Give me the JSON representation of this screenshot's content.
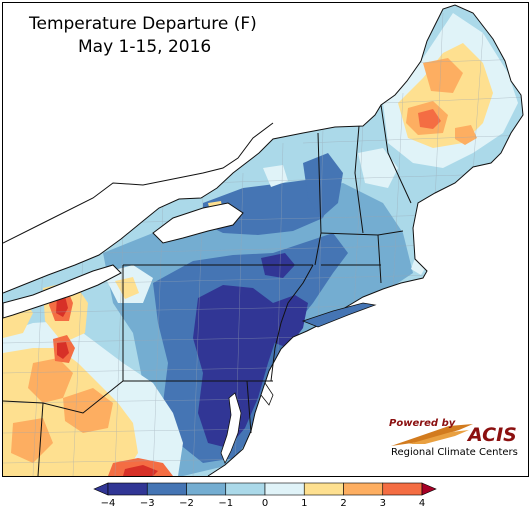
{
  "title": "Temperature Departure (F)",
  "subtitle": "May 1-15, 2016",
  "logo": {
    "powered_by": "Powered by",
    "brand": "ACIS",
    "org": "Regional Climate Centers"
  },
  "legend": {
    "ticks": [
      "−4",
      "−3",
      "−2",
      "−1",
      "0",
      "1",
      "2",
      "3",
      "4"
    ],
    "bins": [
      {
        "range": "-4 to -3",
        "color": "#313695"
      },
      {
        "range": "-3 to -2",
        "color": "#4575b4"
      },
      {
        "range": "-2 to -1",
        "color": "#74add1"
      },
      {
        "range": "-1 to 0",
        "color": "#abd9e9"
      },
      {
        "range": "0 to 1",
        "color": "#e0f3f8"
      },
      {
        "range": "1 to 2",
        "color": "#fee090"
      },
      {
        "range": "2 to 3",
        "color": "#fdae61"
      },
      {
        "range": "3 to 4",
        "color": "#f46d43"
      },
      {
        "range": "> 4",
        "color": "#d73027"
      }
    ],
    "under_color": "#313695",
    "over_color": "#a50026"
  },
  "colors": {
    "water": "#ffffff",
    "state_border": "#111111",
    "county_border": "#9aa6b2",
    "frame": "#000000"
  }
}
